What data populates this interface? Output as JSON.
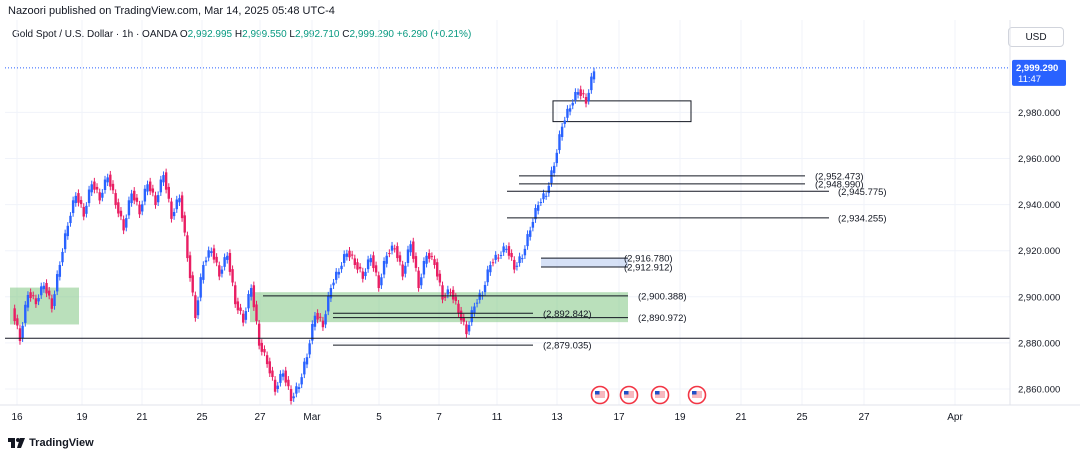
{
  "header": {
    "publisher": "Nazoori published on TradingView.com, Mar 14, 2025 05:48 UTC-4",
    "symbol": "Gold Spot / U.S. Dollar · 1h · OANDA",
    "open_label": "O",
    "open": "2,992.995",
    "high_label": "H",
    "high": "2,999.550",
    "low_label": "L",
    "low": "2,992.710",
    "close_label": "C",
    "close": "2,999.290",
    "change": "+6.290 (+0.21%)",
    "currency": "USD"
  },
  "footer": {
    "brand": "TradingView"
  },
  "colors": {
    "up": "#089981",
    "down": "#f23645",
    "candle_up": "#2962ff",
    "candle_down": "#e91e63",
    "zone": "#a5d6a7"
  },
  "chart_data": {
    "type": "candlestick",
    "x_labels": [
      "16",
      "19",
      "21",
      "25",
      "27",
      "Mar",
      "5",
      "7",
      "11",
      "13",
      "17",
      "19",
      "21",
      "25",
      "27",
      "Apr"
    ],
    "y_ticks": [
      "2,860.000",
      "2,880.000",
      "2,900.000",
      "2,920.000",
      "2,940.000",
      "2,960.000",
      "2,980.000"
    ],
    "y_tick_values": [
      2860,
      2880,
      2900,
      2920,
      2940,
      2960,
      2980
    ],
    "ylim": [
      2853,
      3003
    ],
    "last_price": {
      "value": 2999.29,
      "label": "2,999.290",
      "countdown": "11:47"
    },
    "series": [
      {
        "name": "approx close path",
        "values": [
          2895,
          2882,
          2902,
          2898,
          2906,
          2896,
          2915,
          2932,
          2945,
          2936,
          2950,
          2943,
          2953,
          2941,
          2930,
          2946,
          2937,
          2950,
          2941,
          2954,
          2935,
          2944,
          2918,
          2892,
          2915,
          2921,
          2910,
          2919,
          2898,
          2890,
          2905,
          2880,
          2872,
          2860,
          2868,
          2856,
          2862,
          2875,
          2893,
          2888,
          2905,
          2912,
          2920,
          2915,
          2909,
          2918,
          2905,
          2919,
          2922,
          2910,
          2924,
          2905,
          2919,
          2915,
          2900,
          2903,
          2894,
          2885,
          2897,
          2902,
          2915,
          2918,
          2922,
          2913,
          2918,
          2930,
          2941,
          2945,
          2958,
          2975,
          2983,
          2990,
          2985,
          2999
        ]
      }
    ],
    "levels": [
      {
        "label": "(2,952.473)",
        "value": 2952.473
      },
      {
        "label": "(2,948.990)",
        "value": 2948.99
      },
      {
        "label": "(2,945.775)",
        "value": 2945.775
      },
      {
        "label": "(2,934.255)",
        "value": 2934.255
      },
      {
        "label": "(2,916.780)",
        "value": 2916.78
      },
      {
        "label": "(2,912.912)",
        "value": 2912.912
      },
      {
        "label": "(2,900.388)",
        "value": 2900.388
      },
      {
        "label": "(2,892.842)",
        "value": 2892.842
      },
      {
        "label": "(2,890.972)",
        "value": 2890.972
      },
      {
        "label": "(2,879.035)",
        "value": 2879.035
      }
    ],
    "support_line": 2882,
    "zones": [
      {
        "name": "green-zone-left",
        "y_top": 2904,
        "y_bottom": 2888
      },
      {
        "name": "green-zone-mid",
        "y_top": 2902,
        "y_bottom": 2889
      },
      {
        "name": "target-box",
        "y_top": 2985,
        "y_bottom": 2976
      },
      {
        "name": "blue-zone",
        "y_top": 2917,
        "y_bottom": 2913
      }
    ],
    "event_icons": 4
  }
}
